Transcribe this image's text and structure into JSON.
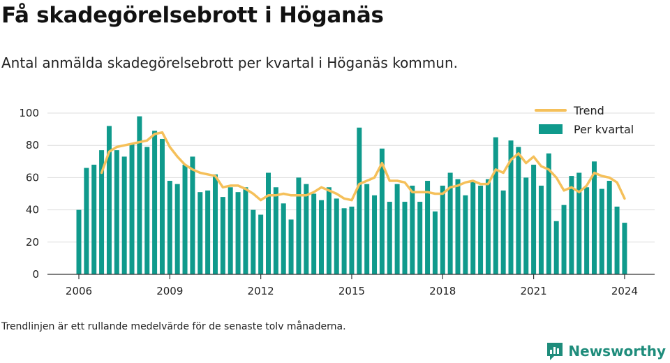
{
  "header": {
    "title": "Få skadegörelsebrott i Höganäs",
    "subtitle": "Antal anmälda skadegörelsebrott per kvartal i Höganäs kommun."
  },
  "footnote": "Trendlinjen är ett rullande medelvärde för de senaste tolv månaderna.",
  "brand": {
    "name": "Newsworthy",
    "icon": "bar-chart-logo-icon",
    "color": "#1e8c7b"
  },
  "chart_data": {
    "type": "bar",
    "xlabel": "",
    "ylabel": "",
    "ylim": [
      0,
      100
    ],
    "yticks": [
      0,
      20,
      40,
      60,
      80,
      100
    ],
    "xticks": [
      "2006",
      "2009",
      "2012",
      "2015",
      "2018",
      "2021",
      "2024"
    ],
    "x_start": "2006 Q1",
    "grid": true,
    "legend_position": "top-right",
    "categories": [
      "2006 Q1",
      "2006 Q2",
      "2006 Q3",
      "2006 Q4",
      "2007 Q1",
      "2007 Q2",
      "2007 Q3",
      "2007 Q4",
      "2008 Q1",
      "2008 Q2",
      "2008 Q3",
      "2008 Q4",
      "2009 Q1",
      "2009 Q2",
      "2009 Q3",
      "2009 Q4",
      "2010 Q1",
      "2010 Q2",
      "2010 Q3",
      "2010 Q4",
      "2011 Q1",
      "2011 Q2",
      "2011 Q3",
      "2011 Q4",
      "2012 Q1",
      "2012 Q2",
      "2012 Q3",
      "2012 Q4",
      "2013 Q1",
      "2013 Q2",
      "2013 Q3",
      "2013 Q4",
      "2014 Q1",
      "2014 Q2",
      "2014 Q3",
      "2014 Q4",
      "2015 Q1",
      "2015 Q2",
      "2015 Q3",
      "2015 Q4",
      "2016 Q1",
      "2016 Q2",
      "2016 Q3",
      "2016 Q4",
      "2017 Q1",
      "2017 Q2",
      "2017 Q3",
      "2017 Q4",
      "2018 Q1",
      "2018 Q2",
      "2018 Q3",
      "2018 Q4",
      "2019 Q1",
      "2019 Q2",
      "2019 Q3",
      "2019 Q4",
      "2020 Q1",
      "2020 Q2",
      "2020 Q3",
      "2020 Q4",
      "2021 Q1",
      "2021 Q2",
      "2021 Q3",
      "2021 Q4",
      "2022 Q1",
      "2022 Q2",
      "2022 Q3",
      "2022 Q4",
      "2023 Q1",
      "2023 Q2",
      "2023 Q3",
      "2023 Q4",
      "2024 Q1"
    ],
    "series": [
      {
        "name": "Per kvartal",
        "type": "bar",
        "color": "#0f9a8c",
        "values": [
          40,
          66,
          68,
          77,
          92,
          77,
          73,
          81,
          98,
          79,
          89,
          84,
          58,
          56,
          68,
          73,
          51,
          52,
          62,
          48,
          54,
          51,
          54,
          40,
          37,
          63,
          54,
          44,
          34,
          60,
          56,
          50,
          46,
          54,
          47,
          41,
          42,
          91,
          56,
          49,
          78,
          45,
          56,
          45,
          55,
          45,
          58,
          39,
          55,
          63,
          59,
          49,
          58,
          55,
          59,
          85,
          52,
          83,
          79,
          60,
          68,
          55,
          75,
          33,
          43,
          61,
          63,
          54,
          70,
          53,
          58,
          42,
          32
        ]
      },
      {
        "name": "Trend",
        "type": "line",
        "color": "#f5c05a",
        "values": [
          null,
          null,
          null,
          63,
          76,
          79,
          80,
          81,
          82,
          83,
          87,
          88,
          79,
          73,
          68,
          65,
          63,
          62,
          61,
          54,
          55,
          55,
          53,
          50,
          46,
          49,
          49,
          50,
          49,
          49,
          49,
          51,
          54,
          52,
          50,
          47,
          46,
          56,
          58,
          60,
          69,
          58,
          58,
          57,
          51,
          51,
          51,
          50,
          50,
          54,
          55,
          57,
          58,
          56,
          56,
          65,
          63,
          71,
          75,
          69,
          73,
          67,
          65,
          60,
          52,
          54,
          51,
          55,
          63,
          61,
          60,
          57,
          47
        ]
      }
    ]
  }
}
